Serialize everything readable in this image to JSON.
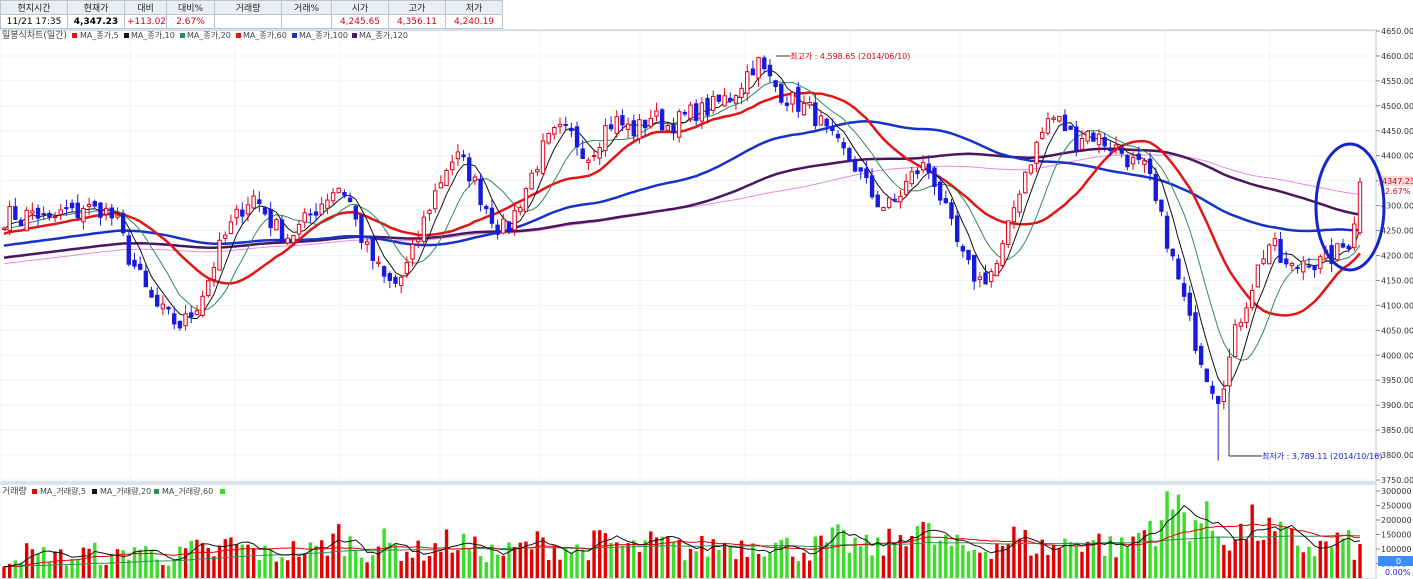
{
  "header": {
    "labels": [
      "현지시간",
      "현재가",
      "대비",
      "대비%",
      "거래량",
      "거래%",
      "시가",
      "고가",
      "저가"
    ],
    "values": [
      "11/21   17:35",
      "4,347.23",
      "+113.02",
      "2.67%",
      "",
      "",
      "4,245.65",
      "4,356.11",
      "4,240.19"
    ]
  },
  "price_legend": [
    "일봉식차트(일간)",
    "MA_종가,5",
    "MA_종가,10",
    "MA_종가,20",
    "MA_종가,60",
    "MA_종가,100",
    "MA_종가,120"
  ],
  "volume_legend": [
    "거래량",
    "MA_거래량,5",
    "MA_거래량,20",
    "MA_거래량,60"
  ],
  "annotations": {
    "high": "최고가 : 4,598.65 (2014/06/10)",
    "low": "최저가 : 3,789.11 (2014/10/16)"
  },
  "price_axis_labels": [
    "4650.00",
    "4600.00",
    "4550.00",
    "4500.00",
    "4450.00",
    "4400.00",
    "4350.00",
    "4300.00",
    "4250.00",
    "4200.00",
    "4150.00",
    "4100.00",
    "4050.00",
    "4000.00",
    "3950.00",
    "3900.00",
    "3850.00",
    "3800.00",
    "3750.00"
  ],
  "volume_axis_labels": [
    "300000",
    "250000",
    "200000",
    "150000",
    "100000",
    "50000"
  ],
  "current_price_label": "4347.23",
  "current_change_label": "2.67%",
  "volume_current_label": "0",
  "volume_change_label": "0.00%",
  "colors": {
    "up": "#e0001b",
    "down": "#1a1adc",
    "ma5": "#111111",
    "ma10": "#2e8b57",
    "ma20": "#e31414",
    "ma60": "#1533c8",
    "ma100": "#4b1560",
    "ma120": "#e08fdc",
    "vol_up": "#e30000",
    "vol_down": "#3ddc2a",
    "circle": "#1426c8"
  },
  "chart_data": {
    "type": "candlestick",
    "ylim": [
      3750,
      4650
    ],
    "volume_ylim": [
      0,
      300000
    ],
    "high": {
      "value": 4598.65,
      "date": "2014/06/10"
    },
    "low": {
      "value": 3789.11,
      "date": "2014/10/16"
    },
    "last": {
      "open": 4245.65,
      "high": 4356.11,
      "low": 4240.19,
      "close": 4347.23,
      "change": 113.02,
      "change_pct": 2.67
    },
    "close_path": [
      4275,
      4285,
      4270,
      4290,
      4280,
      4265,
      4280,
      4290,
      4280,
      4300,
      4290,
      4295,
      4280,
      4260,
      4200,
      4170,
      4130,
      4100,
      4085,
      4070,
      4060,
      4080,
      4110,
      4150,
      4200,
      4240,
      4270,
      4300,
      4320,
      4300,
      4270,
      4250,
      4240,
      4250,
      4270,
      4290,
      4310,
      4330,
      4340,
      4310,
      4250,
      4210,
      4180,
      4150,
      4140,
      4160,
      4200,
      4250,
      4300,
      4340,
      4380,
      4400,
      4380,
      4350,
      4310,
      4280,
      4250,
      4260,
      4300,
      4340,
      4380,
      4420,
      4440,
      4450,
      4440,
      4420,
      4400,
      4430,
      4460,
      4470,
      4460,
      4450,
      4460,
      4480,
      4470,
      4460,
      4470,
      4480,
      4490,
      4490,
      4500,
      4510,
      4520,
      4540,
      4570,
      4590,
      4560,
      4540,
      4520,
      4510,
      4500,
      4490,
      4470,
      4440,
      4420,
      4400,
      4380,
      4350,
      4320,
      4300,
      4300,
      4320,
      4350,
      4370,
      4380,
      4350,
      4300,
      4250,
      4200,
      4170,
      4150,
      4160,
      4180,
      4230,
      4300,
      4360,
      4400,
      4440,
      4480,
      4470,
      4450,
      4430,
      4450,
      4440,
      4430,
      4420,
      4410,
      4390,
      4380,
      4370,
      4300,
      4250,
      4180,
      4120,
      4050,
      4000,
      3950,
      3920,
      3970,
      4050,
      4100,
      4150,
      4200,
      4230,
      4190,
      4170,
      4180,
      4200,
      4180,
      4190,
      4200,
      4215,
      4234,
      4347.23
    ],
    "volume_path": [
      60000,
      75000,
      90000,
      85000,
      70000,
      95000,
      80000,
      65000,
      70000,
      85000,
      90000,
      75000,
      60000,
      80000,
      95000,
      110000,
      90000,
      85000,
      70000,
      65000,
      80000,
      100000,
      95000,
      85000,
      90000,
      110000,
      120000,
      100000,
      95000,
      85000,
      80000,
      75000,
      90000,
      100000,
      95000,
      90000,
      110000,
      130000,
      150000,
      120000,
      100000,
      95000,
      110000,
      120000,
      105000,
      100000,
      95000,
      90000,
      100000,
      110000,
      120000,
      130000,
      115000,
      100000,
      95000,
      90000,
      85000,
      90000,
      100000,
      110000,
      120000,
      115000,
      110000,
      105000,
      100000,
      95000,
      110000,
      120000,
      125000,
      115000,
      105000,
      100000,
      110000,
      115000,
      120000,
      110000,
      100000,
      95000,
      100000,
      105000,
      110000,
      120000,
      115000,
      110000,
      120000,
      130000,
      125000,
      115000,
      110000,
      100000,
      95000,
      100000,
      110000,
      120000,
      130000,
      125000,
      115000,
      105000,
      100000,
      110000,
      120000,
      140000,
      200000,
      180000,
      150000,
      130000,
      120000,
      110000,
      100000,
      95000,
      100000,
      110000,
      120000,
      130000,
      140000,
      125000,
      115000,
      105000,
      100000,
      110000,
      120000,
      130000,
      140000,
      130000,
      120000,
      110000,
      100000,
      120000,
      150000,
      180000,
      200000,
      220000,
      250000,
      230000,
      210000,
      200000,
      180000,
      160000,
      150000,
      140000,
      160000,
      180000,
      170000,
      150000,
      140000,
      130000,
      120000,
      110000,
      100000,
      110000,
      120000,
      130000,
      110000,
      90000
    ]
  }
}
